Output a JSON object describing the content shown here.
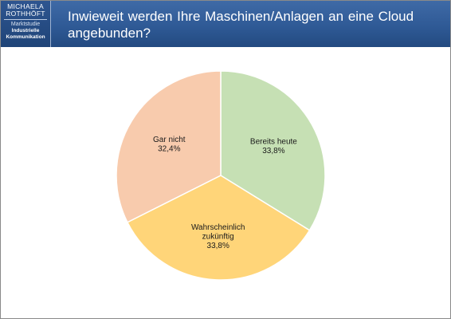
{
  "header": {
    "title": "Inwieweit werden Ihre Maschinen/Anlagen an eine Cloud angebunden?"
  },
  "logo": {
    "line1": "MICHAELA",
    "line2": "ROTHHÖFT",
    "line3": "Marktstudie",
    "line4": "Industrielle",
    "line5": "Kommunikation"
  },
  "chart_data": {
    "type": "pie",
    "slices": [
      {
        "label_lines": [
          "Bereits heute"
        ],
        "value": 33.8,
        "value_text": "33,8%",
        "color": "#c6e0b4"
      },
      {
        "label_lines": [
          "Wahrscheinlich",
          "zukünftig"
        ],
        "value": 33.8,
        "value_text": "33,8%",
        "color": "#ffd579"
      },
      {
        "label_lines": [
          "Gar nicht"
        ],
        "value": 32.4,
        "value_text": "32,4%",
        "color": "#f8cbad"
      }
    ],
    "start": "12 o'clock",
    "direction": "clockwise",
    "legend": "none"
  }
}
